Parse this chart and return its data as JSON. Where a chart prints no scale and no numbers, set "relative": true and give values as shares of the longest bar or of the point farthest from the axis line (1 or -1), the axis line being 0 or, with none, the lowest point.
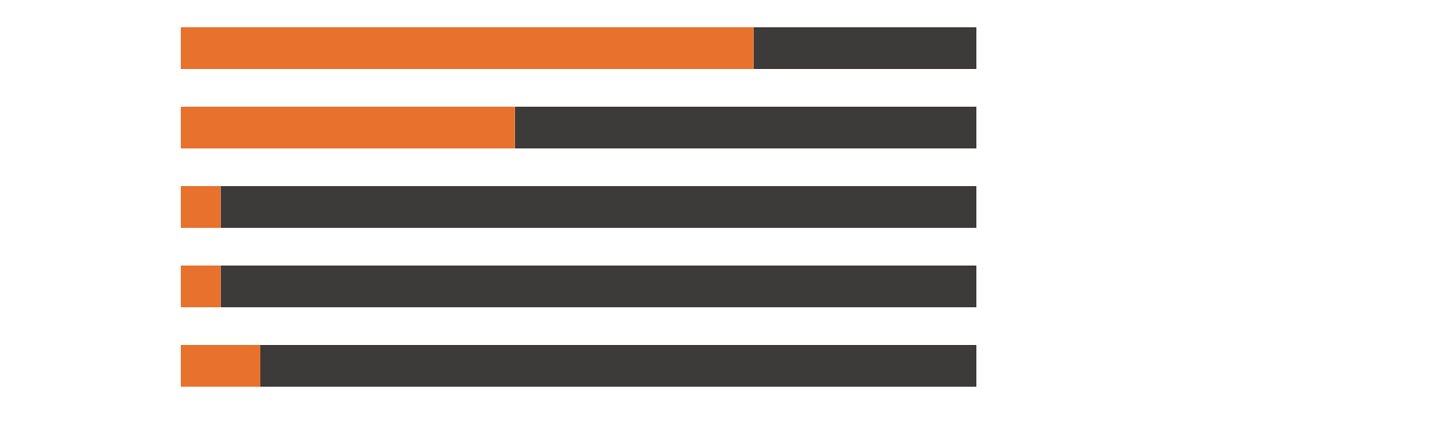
{
  "chart_data": {
    "type": "bar",
    "orientation": "horizontal",
    "relative": true,
    "stacked": true,
    "categories": [
      null,
      null,
      null,
      null,
      null
    ],
    "series": [
      {
        "color": "#e8712d",
        "values": [
          0.72,
          0.42,
          0.05,
          0.05,
          0.1
        ]
      },
      {
        "color": "#3c3b39",
        "values": [
          0.28,
          0.58,
          0.95,
          0.95,
          0.9
        ]
      }
    ]
  }
}
